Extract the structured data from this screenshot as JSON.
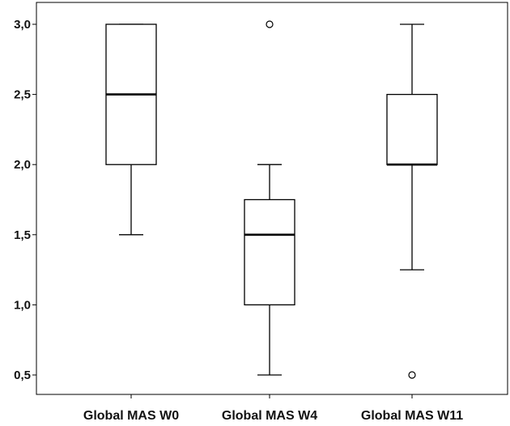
{
  "chart_data": {
    "type": "boxplot",
    "title": "",
    "xlabel": "",
    "ylabel": "",
    "ylim": [
      0.4,
      3.1
    ],
    "yticks": [
      0.5,
      1.0,
      1.5,
      2.0,
      2.5,
      3.0
    ],
    "ytick_labels": [
      "0,5",
      "1,0",
      "1,5",
      "2,0",
      "2,5",
      "3,0"
    ],
    "grid": false,
    "categories": [
      "Global MAS W0",
      "Global MAS W4",
      "Global MAS W11"
    ],
    "boxes": [
      {
        "label": "Global MAS W0",
        "whisker_low": 1.5,
        "q1": 2.0,
        "median": 2.5,
        "q3": 3.0,
        "whisker_high": 3.0,
        "outliers": []
      },
      {
        "label": "Global MAS W4",
        "whisker_low": 0.5,
        "q1": 1.0,
        "median": 1.5,
        "q3": 1.75,
        "whisker_high": 2.0,
        "outliers": [
          3.0
        ]
      },
      {
        "label": "Global MAS W11",
        "whisker_low": 1.25,
        "q1": 2.0,
        "median": 2.0,
        "q3": 2.5,
        "whisker_high": 3.0,
        "outliers": [
          0.5
        ]
      }
    ],
    "colors": {
      "box_fill": "#ffffff",
      "stroke": "#000000",
      "text": "#111111"
    }
  }
}
